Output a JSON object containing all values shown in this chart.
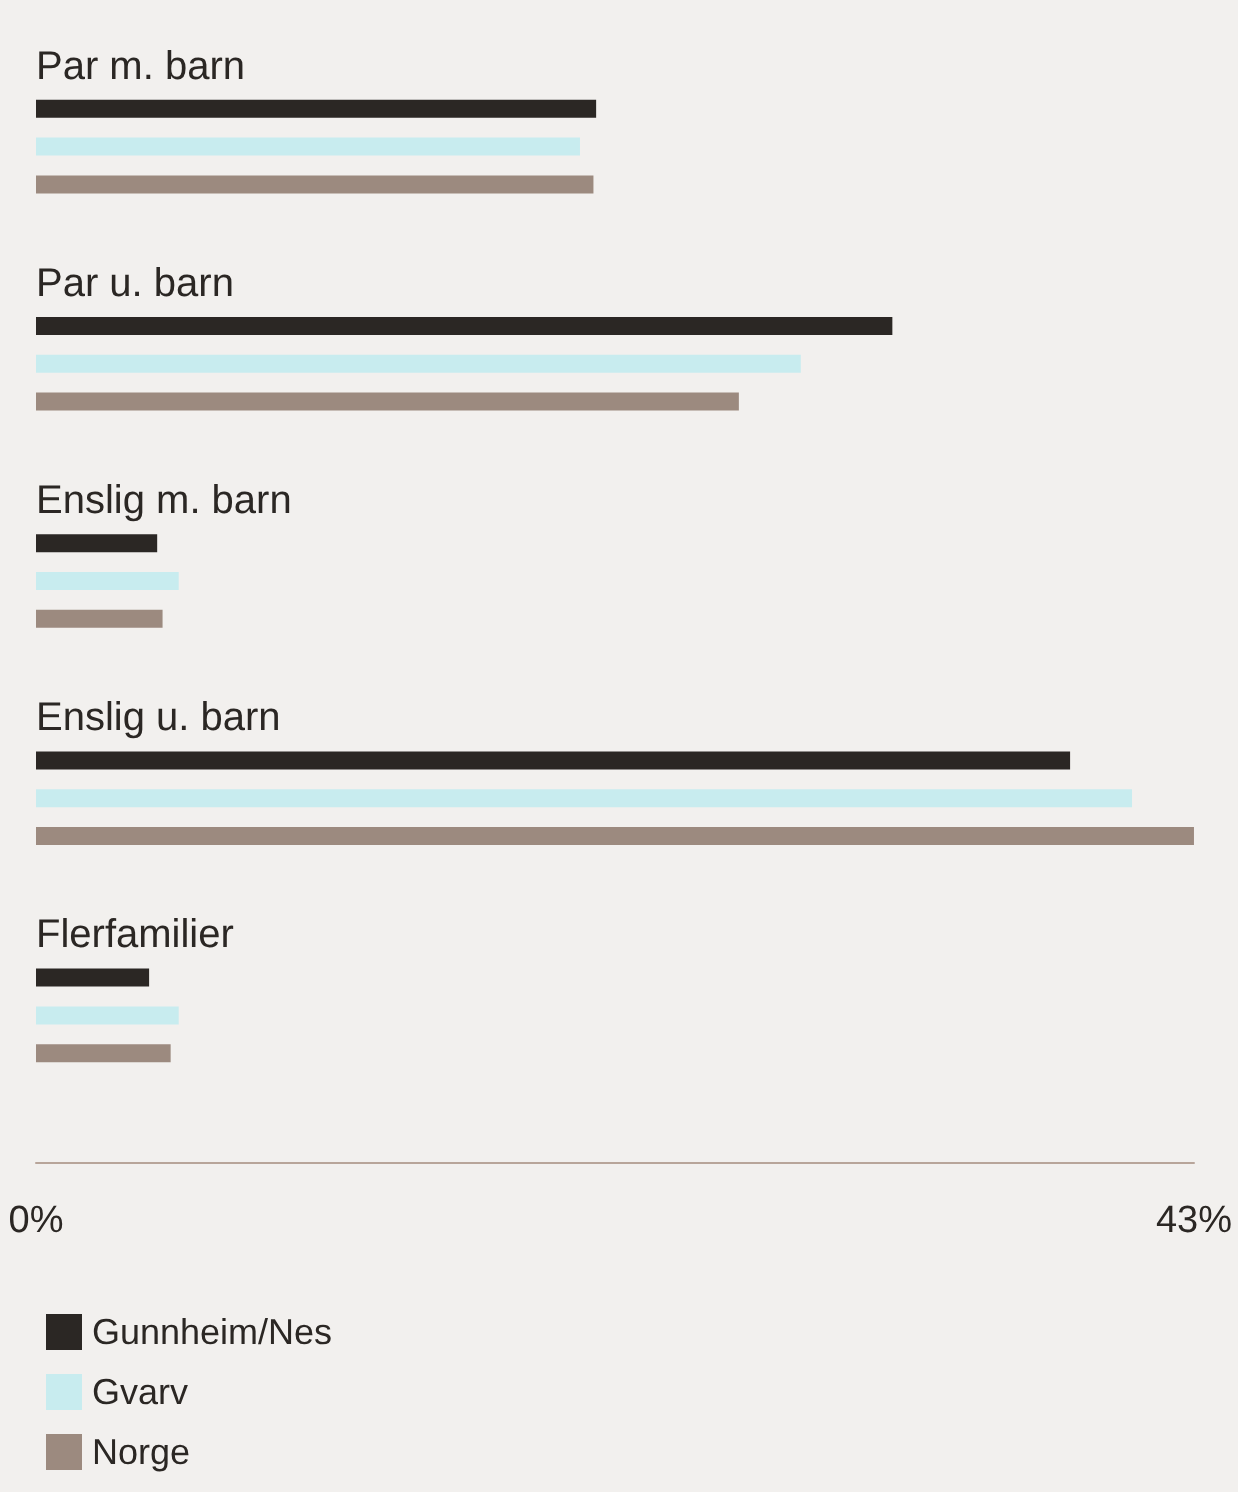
{
  "chart_data": {
    "type": "bar",
    "orientation": "horizontal",
    "categories": [
      "Par m. barn",
      "Par u. barn",
      "Enslig m. barn",
      "Enslig u. barn",
      "Flerfamilier"
    ],
    "series": [
      {
        "name": "Gunnheim/Nes",
        "color": "#2b2724",
        "values": [
          20.8,
          31.8,
          4.5,
          38.4,
          4.2
        ]
      },
      {
        "name": "Gvarv",
        "color": "#c8ecef",
        "values": [
          20.2,
          28.4,
          5.3,
          40.7,
          5.3
        ]
      },
      {
        "name": "Norge",
        "color": "#9c8a7f",
        "values": [
          20.7,
          26.1,
          4.7,
          43,
          5.0
        ]
      }
    ],
    "xlim": [
      0,
      43
    ],
    "xticks": [
      {
        "value": 0,
        "label": "0%"
      },
      {
        "value": 43,
        "label": "43%"
      }
    ],
    "grid": false,
    "legend": "bottom left"
  }
}
